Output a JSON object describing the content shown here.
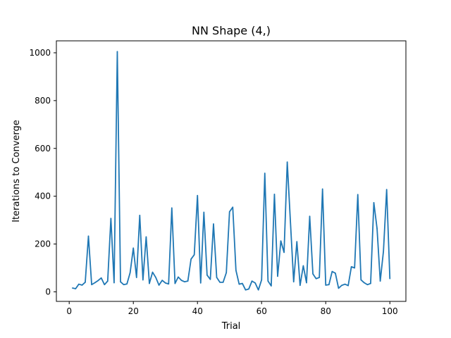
{
  "chart_data": {
    "type": "line",
    "title": "NN Shape (4,)",
    "xlabel": "Trial",
    "ylabel": "Iterations to Converge",
    "xlim": [
      -4,
      105
    ],
    "ylim": [
      -40,
      1050
    ],
    "xticks": [
      0,
      20,
      40,
      60,
      80,
      100
    ],
    "yticks": [
      0,
      200,
      400,
      600,
      800,
      1000
    ],
    "grid": false,
    "series": [
      {
        "color": "#1f77b4",
        "x": [
          1,
          2,
          3,
          4,
          5,
          6,
          7,
          8,
          9,
          10,
          11,
          12,
          13,
          14,
          15,
          16,
          17,
          18,
          19,
          20,
          21,
          22,
          23,
          24,
          25,
          26,
          27,
          28,
          29,
          30,
          31,
          32,
          33,
          34,
          35,
          36,
          37,
          38,
          39,
          40,
          41,
          42,
          43,
          44,
          45,
          46,
          47,
          48,
          49,
          50,
          51,
          52,
          53,
          54,
          55,
          56,
          57,
          58,
          59,
          60,
          61,
          62,
          63,
          64,
          65,
          66,
          67,
          68,
          69,
          70,
          71,
          72,
          73,
          74,
          75,
          76,
          77,
          78,
          79,
          80,
          81,
          82,
          83,
          84,
          85,
          86,
          87,
          88,
          89,
          90,
          91,
          92,
          93,
          94,
          95,
          96,
          97,
          98,
          99,
          100
        ],
        "values": [
          16,
          13,
          32,
          28,
          40,
          233,
          30,
          38,
          47,
          58,
          30,
          45,
          307,
          38,
          1005,
          42,
          30,
          33,
          80,
          183,
          60,
          320,
          50,
          230,
          35,
          82,
          60,
          28,
          48,
          37,
          33,
          351,
          35,
          62,
          48,
          42,
          45,
          137,
          155,
          403,
          37,
          333,
          70,
          52,
          284,
          60,
          40,
          40,
          80,
          335,
          354,
          90,
          32,
          35,
          8,
          12,
          45,
          37,
          8,
          50,
          496,
          45,
          25,
          408,
          65,
          213,
          165,
          543,
          290,
          42,
          210,
          27,
          109,
          38,
          316,
          75,
          55,
          60,
          430,
          28,
          30,
          85,
          78,
          15,
          27,
          32,
          26,
          105,
          100,
          407,
          50,
          38,
          30,
          35,
          373,
          265,
          45,
          170,
          428,
          55
        ]
      }
    ]
  }
}
